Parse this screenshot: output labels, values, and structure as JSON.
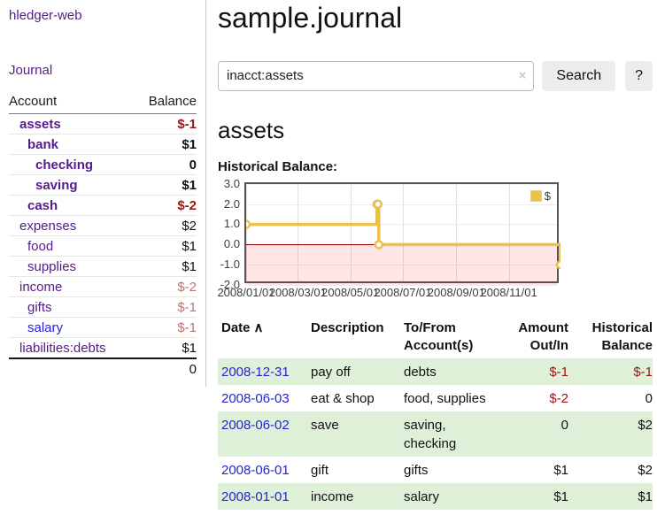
{
  "app": {
    "brand": "hledger-web",
    "nav_journal": "Journal"
  },
  "sidebar": {
    "header": {
      "account": "Account",
      "balance": "Balance"
    },
    "accounts": [
      {
        "name": "assets",
        "level": 1,
        "balance": "$-1",
        "bold": true,
        "negative": true
      },
      {
        "name": "bank",
        "level": 2,
        "balance": "$1",
        "bold": true
      },
      {
        "name": "checking",
        "level": 3,
        "balance": "0",
        "bold": true
      },
      {
        "name": "saving",
        "level": 3,
        "balance": "$1",
        "bold": true
      },
      {
        "name": "cash",
        "level": 2,
        "balance": "$-2",
        "bold": true,
        "negative": true
      },
      {
        "name": "expenses",
        "level": 1,
        "balance": "$2"
      },
      {
        "name": "food",
        "level": 2,
        "balance": "$1"
      },
      {
        "name": "supplies",
        "level": 2,
        "balance": "$1"
      },
      {
        "name": "income",
        "level": 1,
        "balance": "$-2",
        "soft_negative": true
      },
      {
        "name": "gifts",
        "level": 2,
        "balance": "$-1",
        "soft_negative": true
      },
      {
        "name": "salary",
        "level": 2,
        "balance": "$-1",
        "soft_negative": true,
        "unvisited": true
      },
      {
        "name": "liabilities:debts",
        "level": 1,
        "balance": "$1"
      }
    ],
    "total": "0"
  },
  "header": {
    "title": "sample.journal"
  },
  "search": {
    "value": "inacct:assets",
    "clear_label": "×",
    "button": "Search",
    "help": "?"
  },
  "account_page": {
    "title": "assets",
    "chart_label": "Historical Balance:"
  },
  "chart_data": {
    "type": "line",
    "step": true,
    "title": "Historical Balance",
    "series": [
      {
        "name": "$",
        "points": [
          {
            "date": "2008-01-01",
            "value": 1
          },
          {
            "date": "2008-06-01",
            "value": 2
          },
          {
            "date": "2008-06-02",
            "value": 2
          },
          {
            "date": "2008-06-03",
            "value": 0
          },
          {
            "date": "2008-12-31",
            "value": -1
          }
        ]
      }
    ],
    "x_range": [
      "2008-01-01",
      "2008-12-31"
    ],
    "ylim": [
      -2,
      3
    ],
    "y_ticks": [
      3.0,
      2.0,
      1.0,
      0.0,
      -1.0,
      -2.0
    ],
    "x_ticks": [
      {
        "date": "2008-01-01",
        "label": "2008/01/01"
      },
      {
        "date": "2008-03-01",
        "label": "2008/03/01"
      },
      {
        "date": "2008-05-01",
        "label": "2008/05/01"
      },
      {
        "date": "2008-07-01",
        "label": "2008/07/01"
      },
      {
        "date": "2008-09-01",
        "label": "2008/09/01"
      },
      {
        "date": "2008-11-01",
        "label": "2008/11/01"
      }
    ],
    "legend": {
      "label": "$",
      "position": "top-right"
    },
    "grid": true,
    "negative_region_shaded": true,
    "line_color": "#e8c24a",
    "zero_line_color": "#8b0000"
  },
  "table": {
    "sort_icon": "∧",
    "headers": [
      {
        "label": "Date",
        "align": "left",
        "sorted": "asc"
      },
      {
        "label": "Description",
        "align": "left"
      },
      {
        "label": "To/From Account(s)",
        "align": "left"
      },
      {
        "label": "Amount Out/In",
        "align": "right"
      },
      {
        "label": "Historical Balance",
        "align": "right"
      }
    ],
    "rows": [
      {
        "date": "2008-12-31",
        "description": "pay off",
        "accounts": "debts",
        "amount": "$-1",
        "amount_negative": true,
        "balance": "$-1",
        "balance_negative": true
      },
      {
        "date": "2008-06-03",
        "description": "eat & shop",
        "accounts": "food, supplies",
        "amount": "$-2",
        "amount_negative": true,
        "balance": "0",
        "balance_negative": false
      },
      {
        "date": "2008-06-02",
        "description": "save",
        "accounts": "saving,\nchecking",
        "amount": "0",
        "amount_negative": false,
        "balance": "$2",
        "balance_negative": false
      },
      {
        "date": "2008-06-01",
        "description": "gift",
        "accounts": "gifts",
        "amount": "$1",
        "amount_negative": false,
        "balance": "$2",
        "balance_negative": false
      },
      {
        "date": "2008-01-01",
        "description": "income",
        "accounts": "salary",
        "amount": "$1",
        "amount_negative": false,
        "balance": "$1",
        "balance_negative": false
      }
    ]
  },
  "colors": {
    "link_purple": "#551a8b",
    "link_blue": "#2424d4",
    "negative_red": "#941616",
    "soft_negative_red": "#bb7373",
    "row_stripe_green": "#dff0d8",
    "chart_line_gold": "#e8c24a",
    "chart_negative_fill": "#fbe3e3",
    "zero_line_red": "#8b0000",
    "button_gray": "#ececec"
  }
}
